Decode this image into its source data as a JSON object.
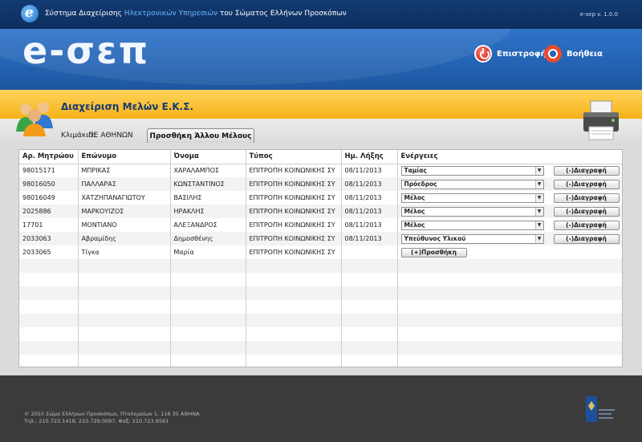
{
  "topbar": {
    "system_pre": "Σύστημα Διαχείρισης ",
    "system_highlight": "Ηλεκτρονικών Υπηρεσιών",
    "system_post": " του Σώματος Ελλήνων Προσκόπων",
    "version": "e-sep v. 1.0.0"
  },
  "header": {
    "brand": "e-σεπ",
    "back_label": "Επιστροφή",
    "help_label": "Βοήθεια"
  },
  "page": {
    "title": "Διαχείριση Μελών Ε.Κ.Σ.",
    "level_label": "Κλιμάκιο:",
    "level_value": "ΠΕ ΑΘΗΝΩΝ",
    "add_member_button": "Προσθήκη Άλλου Μέλους"
  },
  "table": {
    "headers": [
      "Αρ. Μητρώου",
      "Επώνυμο",
      "Όνομα",
      "Τύπος",
      "Ημ. Λήξης",
      "Ενέργειες"
    ],
    "rows": [
      {
        "reg": "98015171",
        "surname": "ΜΠΡΙΚΑΣ",
        "name": "ΧΑΡΑΛΑΜΠΟΣ",
        "type": "ΕΠΙΤΡΟΠΗ ΚΟΙΝΩΝΙΚΗΣ ΣΥ",
        "expiry": "08/11/2013",
        "role": "Ταμίας"
      },
      {
        "reg": "98016050",
        "surname": "ΠΑΛΛΑΡΑΣ",
        "name": "ΚΩΝΣΤΑΝΤΙΝΟΣ",
        "type": "ΕΠΙΤΡΟΠΗ ΚΟΙΝΩΝΙΚΗΣ ΣΥ",
        "expiry": "08/11/2013",
        "role": "Πρόεδρος"
      },
      {
        "reg": "98016049",
        "surname": "ΧΑΤΖΗΠΑΝΑΓΙΩΤΟΥ",
        "name": "ΒΑΣΙΛΗΣ",
        "type": "ΕΠΙΤΡΟΠΗ ΚΟΙΝΩΝΙΚΗΣ ΣΥ",
        "expiry": "08/11/2013",
        "role": "Μέλος"
      },
      {
        "reg": "2025886",
        "surname": "ΜΑΡΚΟΥΙΖΟΣ",
        "name": "ΗΡΑΚΛΗΣ",
        "type": "ΕΠΙΤΡΟΠΗ ΚΟΙΝΩΝΙΚΗΣ ΣΥ",
        "expiry": "08/11/2013",
        "role": "Μέλος"
      },
      {
        "reg": "17701",
        "surname": "ΜΟΝΤΙΑΝΟ",
        "name": "ΑΛΕΞΑΝΔΡΟΣ",
        "type": "ΕΠΙΤΡΟΠΗ ΚΟΙΝΩΝΙΚΗΣ ΣΥ",
        "expiry": "08/11/2013",
        "role": "Μέλος"
      },
      {
        "reg": "2033063",
        "surname": "Αβραμίδης",
        "name": "Δημοσθένης",
        "type": "ΕΠΙΤΡΟΠΗ ΚΟΙΝΩΝΙΚΗΣ ΣΥ",
        "expiry": "08/11/2013",
        "role": "Υπεύθυνος Υλικού"
      }
    ],
    "delete_label": "(-)Διαγραφή",
    "new_row": {
      "reg": "2033065",
      "surname": "Τίγκα",
      "name": "Μαρία",
      "type": "ΕΠΙΤΡΟΠΗ ΚΟΙΝΩΝΙΚΗΣ ΣΥ",
      "add_label": "(+)Προσθήκη"
    }
  },
  "footer": {
    "line1": "© 2010 Σώμα Ελλήνων Προσκόπων, Πτολεμαίων 1, 116 35 ΑΘΗΝΑ",
    "line2": "Τηλ.: 210.723.1418, 210.729.0097, Φαξ: 210.723.6561"
  },
  "colors": {
    "navy": "#123a72",
    "banner_blue": "#2465b6",
    "orange": "#f6b21a",
    "footer": "#3b3b3b"
  }
}
